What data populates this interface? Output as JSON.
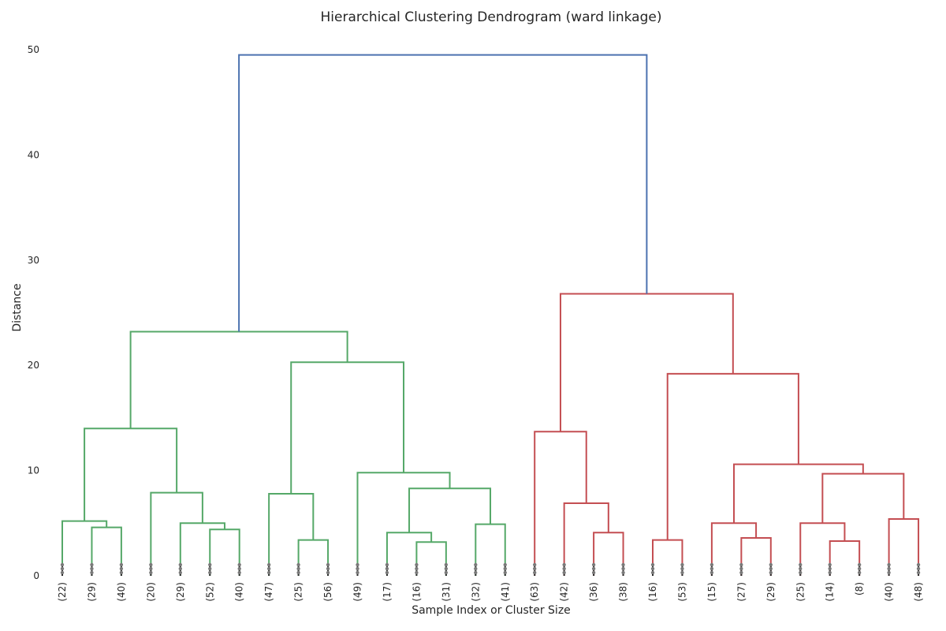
{
  "chart_data": {
    "type": "dendrogram",
    "title": "Hierarchical Clustering Dendrogram (ward linkage)",
    "xlabel": "Sample Index or Cluster Size",
    "ylabel": "Distance",
    "ylim": [
      0,
      50
    ],
    "yticks": [
      0,
      10,
      20,
      30,
      40,
      50
    ],
    "grid": false,
    "colors": {
      "left_cluster": "#55a868",
      "right_cluster": "#c44e52",
      "root": "#4c72b0",
      "leaf_dots": "#7a7a7a"
    },
    "leaves": [
      "(22)",
      "(29)",
      "(40)",
      "(20)",
      "(29)",
      "(52)",
      "(40)",
      "(47)",
      "(25)",
      "(56)",
      "(49)",
      "(17)",
      "(16)",
      "(31)",
      "(32)",
      "(41)",
      "(63)",
      "(42)",
      "(36)",
      "(38)",
      "(16)",
      "(53)",
      "(15)",
      "(27)",
      "(29)",
      "(25)",
      "(14)",
      "(8)",
      "(40)",
      "(48)"
    ],
    "merges": [
      {
        "id": "A",
        "left": "L1",
        "right": "L2",
        "height": 4.6,
        "color": "green"
      },
      {
        "id": "B",
        "left": "L0",
        "right": "A",
        "height": 5.2,
        "color": "green"
      },
      {
        "id": "C",
        "left": "L5",
        "right": "L6",
        "height": 4.4,
        "color": "green"
      },
      {
        "id": "D",
        "left": "L4",
        "right": "C",
        "height": 5.0,
        "color": "green"
      },
      {
        "id": "E",
        "left": "L3",
        "right": "D",
        "height": 7.9,
        "color": "green"
      },
      {
        "id": "F",
        "left": "B",
        "right": "E",
        "height": 14.0,
        "color": "green"
      },
      {
        "id": "G",
        "left": "L8",
        "right": "L9",
        "height": 3.4,
        "color": "green"
      },
      {
        "id": "H",
        "left": "L7",
        "right": "G",
        "height": 7.8,
        "color": "green"
      },
      {
        "id": "I",
        "left": "L12",
        "right": "L13",
        "height": 3.2,
        "color": "green"
      },
      {
        "id": "J",
        "left": "L11",
        "right": "I",
        "height": 4.1,
        "color": "green"
      },
      {
        "id": "K",
        "left": "L14",
        "right": "L15",
        "height": 4.9,
        "color": "green"
      },
      {
        "id": "Lm",
        "left": "J",
        "right": "K",
        "height": 8.3,
        "color": "green"
      },
      {
        "id": "M",
        "left": "L10",
        "right": "Lm",
        "height": 9.8,
        "color": "green"
      },
      {
        "id": "N",
        "left": "H",
        "right": "M",
        "height": 20.3,
        "color": "green"
      },
      {
        "id": "O",
        "left": "F",
        "right": "N",
        "height": 23.2,
        "color": "green"
      },
      {
        "id": "P",
        "left": "L18",
        "right": "L19",
        "height": 4.1,
        "color": "red"
      },
      {
        "id": "Q",
        "left": "L17",
        "right": "P",
        "height": 6.9,
        "color": "red"
      },
      {
        "id": "R",
        "left": "L16",
        "right": "Q",
        "height": 13.7,
        "color": "red"
      },
      {
        "id": "S",
        "left": "L20",
        "right": "L21",
        "height": 3.4,
        "color": "red"
      },
      {
        "id": "T",
        "left": "L23",
        "right": "L24",
        "height": 3.6,
        "color": "red"
      },
      {
        "id": "U",
        "left": "L22",
        "right": "T",
        "height": 5.0,
        "color": "red"
      },
      {
        "id": "V",
        "left": "L26",
        "right": "L27",
        "height": 3.3,
        "color": "red"
      },
      {
        "id": "W",
        "left": "L25",
        "right": "V",
        "height": 5.0,
        "color": "red"
      },
      {
        "id": "X",
        "left": "L28",
        "right": "L29",
        "height": 5.4,
        "color": "red"
      },
      {
        "id": "Y",
        "left": "W",
        "right": "X",
        "height": 9.7,
        "color": "red"
      },
      {
        "id": "Z",
        "left": "U",
        "right": "Y",
        "height": 10.6,
        "color": "red"
      },
      {
        "id": "AA",
        "left": "S",
        "right": "Z",
        "height": 19.2,
        "color": "red"
      },
      {
        "id": "AB",
        "left": "R",
        "right": "AA",
        "height": 26.8,
        "color": "red"
      },
      {
        "id": "ROOT",
        "left": "O",
        "right": "AB",
        "height": 49.5,
        "color": "blue"
      }
    ]
  }
}
